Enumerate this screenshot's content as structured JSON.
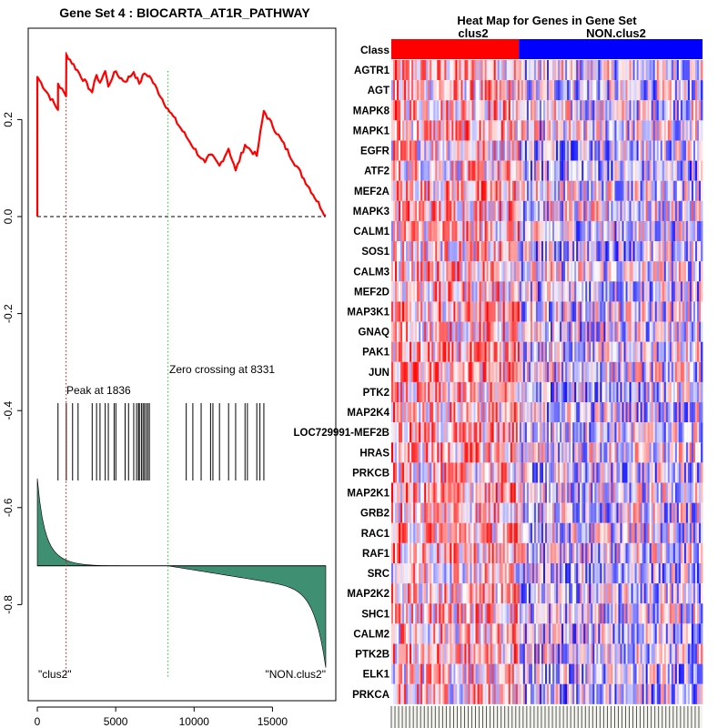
{
  "chart_data": [
    {
      "type": "line",
      "title": "Gene Set  4 : BIOCARTA_AT1R_PATHWAY",
      "xlim": [
        0,
        18500
      ],
      "ylim": [
        -0.93,
        0.35
      ],
      "x_ticks": [
        0,
        5000,
        10000,
        15000
      ],
      "x_tick_labels": [
        "0",
        "5000",
        "10000",
        "15000"
      ],
      "y_ticks": [
        0.2,
        0.0,
        -0.2,
        -0.4,
        -0.6,
        -0.8
      ],
      "y_tick_labels": [
        "0.2",
        "0.0",
        "-0.2",
        "-0.4",
        "-0.6",
        "-0.8"
      ],
      "colors": {
        "es_curve": "#ff0000",
        "peak_line": "#dd0000",
        "zero_cross_line": "#22cc22",
        "ranked_fill": "#3f8f73",
        "hits": "#000000",
        "baseline": "#000000"
      },
      "peak": {
        "x": 1836,
        "label": "Peak at 1836"
      },
      "zero_crossing": {
        "x": 8331,
        "label": "Zero crossing at 8331"
      },
      "left_label": "\"clus2\"",
      "right_label": "\"NON.clus2\"",
      "hits": [
        1320,
        1850,
        2250,
        2600,
        3500,
        3780,
        4000,
        4330,
        4530,
        4900,
        5010,
        5600,
        5820,
        6150,
        6330,
        6450,
        6510,
        6640,
        6740,
        6830,
        6940,
        7050,
        7150,
        9500,
        9920,
        10450,
        11050,
        11200,
        11620,
        12200,
        12650,
        13250,
        13400,
        14000,
        14200,
        14450
      ],
      "es_points": [
        [
          0,
          0.0
        ],
        [
          2,
          0.288
        ],
        [
          1320,
          0.22
        ],
        [
          1322,
          0.274
        ],
        [
          1836,
          0.248
        ],
        [
          1850,
          0.335
        ],
        [
          3500,
          0.256
        ],
        [
          3780,
          0.292
        ],
        [
          4000,
          0.276
        ],
        [
          4330,
          0.3
        ],
        [
          4530,
          0.268
        ],
        [
          4900,
          0.298
        ],
        [
          5600,
          0.278
        ],
        [
          6150,
          0.298
        ],
        [
          6500,
          0.274
        ],
        [
          6830,
          0.295
        ],
        [
          7150,
          0.29
        ],
        [
          8331,
          0.222
        ],
        [
          9500,
          0.165
        ],
        [
          10450,
          0.12
        ],
        [
          10700,
          0.112
        ],
        [
          11050,
          0.128
        ],
        [
          11620,
          0.105
        ],
        [
          12200,
          0.14
        ],
        [
          12650,
          0.095
        ],
        [
          13250,
          0.148
        ],
        [
          14000,
          0.125
        ],
        [
          14450,
          0.218
        ],
        [
          18400,
          0.002
        ]
      ],
      "ranked_metric": {
        "baseline": -0.72,
        "start_value": -0.54,
        "end_value": -0.93,
        "zero_cross_x": 8331,
        "x_max": 18400
      }
    },
    {
      "type": "heatmap",
      "title": "Heat Map for Genes in Gene Set",
      "class_row_label": "Class",
      "class_labels": [
        "clus2",
        "NON.clus2"
      ],
      "class_colors": [
        "#ff0000",
        "#0000ff"
      ],
      "class_split_fraction": 0.41,
      "genes": [
        "AGTR1",
        "AGT",
        "MAPK8",
        "MAPK1",
        "EGFR",
        "ATF2",
        "MEF2A",
        "MAPK3",
        "CALM1",
        "SOS1",
        "CALM3",
        "MEF2D",
        "MAP3K1",
        "GNAQ",
        "PAK1",
        "JUN",
        "PTK2",
        "MAP2K4",
        "LOC729991-MEF2B",
        "HRAS",
        "PRKCB",
        "MAP2K1",
        "GRB2",
        "RAC1",
        "RAF1",
        "SRC",
        "MAP2K2",
        "SHC1",
        "CALM2",
        "PTK2B",
        "ELK1",
        "PRKCA"
      ],
      "column_count": 170,
      "value_colors": {
        "high": "#ff0000",
        "mid": "#ffffff",
        "low": "#0000ff"
      }
    }
  ]
}
